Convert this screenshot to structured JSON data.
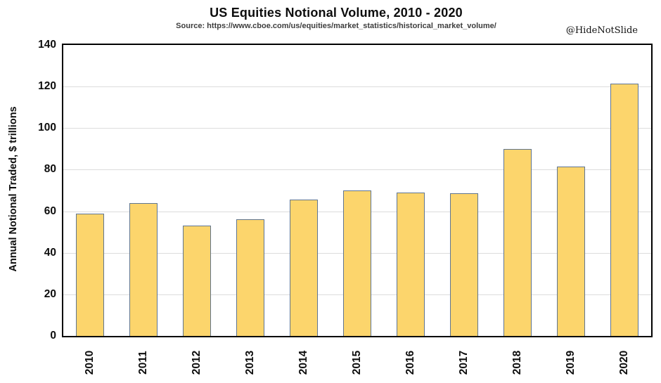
{
  "header": {
    "title": "US Equities Notional Volume, 2010 - 2020",
    "source": "Source: https://www.cboe.com/us/equities/market_statistics/historical_market_volume/",
    "watermark": "@HideNotSlide"
  },
  "chart_data": {
    "type": "bar",
    "title": "US Equities Notional Volume, 2010 - 2020",
    "subtitle": "Source: https://www.cboe.com/us/equities/market_statistics/historical_market_volume/",
    "categories": [
      "2010",
      "2011",
      "2012",
      "2013",
      "2014",
      "2015",
      "2016",
      "2017",
      "2018",
      "2019",
      "2020"
    ],
    "values": [
      59,
      64,
      53,
      56,
      65.5,
      70,
      69,
      68.5,
      90,
      81.5,
      121.5
    ],
    "xlabel": "",
    "ylabel": "Annual Notional Traded, $ trillions",
    "ylim": [
      0,
      140
    ],
    "yticks": [
      0,
      20,
      40,
      60,
      80,
      100,
      120,
      140
    ],
    "grid": "horizontal",
    "legend": "none",
    "colors": {
      "bar_fill": "#FCD56C",
      "bar_border": "#5F7591",
      "gridline": "#DCDCDC",
      "axis_frame": "#000000",
      "background": "#FFFFFF"
    }
  }
}
